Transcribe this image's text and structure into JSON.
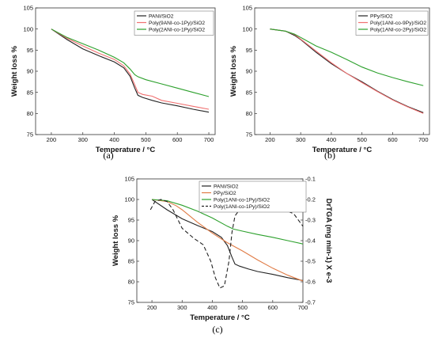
{
  "colors": {
    "black": "#222222",
    "red": "#f07070",
    "green": "#2ca02c",
    "orange": "#e07b45"
  },
  "chart_data": [
    {
      "type": "line",
      "panel": "a",
      "caption": "(a)",
      "xlabel": "Temperature / °C",
      "ylabel": "Weight loss %",
      "xlim": [
        150,
        720
      ],
      "ylim": [
        75,
        105
      ],
      "xticks": [
        200,
        300,
        400,
        500,
        600,
        700
      ],
      "yticks": [
        75,
        80,
        85,
        90,
        95,
        100,
        105
      ],
      "legend_position": "top-right",
      "series": [
        {
          "name": "PANI/SiO2",
          "color": "black",
          "x": [
            200,
            250,
            300,
            350,
            400,
            430,
            450,
            465,
            475,
            490,
            520,
            550,
            600,
            650,
            700
          ],
          "y": [
            100,
            97.5,
            95.3,
            93.7,
            92.2,
            90.8,
            88.8,
            86,
            84.3,
            83.8,
            83.1,
            82.5,
            81.8,
            81,
            80.3
          ]
        },
        {
          "name": "Poly(9ANI-co-1Py)/SiO2",
          "color": "red",
          "x": [
            200,
            250,
            300,
            350,
            400,
            430,
            450,
            465,
            475,
            490,
            520,
            550,
            600,
            650,
            700
          ],
          "y": [
            100,
            97.8,
            96,
            94.3,
            92.8,
            91.3,
            89.3,
            86.8,
            85,
            84.5,
            84.1,
            83.1,
            82.4,
            81.7,
            81
          ]
        },
        {
          "name": "Poly(2ANI-co-1Py)/SiO2",
          "color": "green",
          "x": [
            200,
            250,
            300,
            350,
            400,
            430,
            450,
            465,
            475,
            500,
            550,
            600,
            650,
            700
          ],
          "y": [
            100,
            98,
            96.5,
            95,
            93.3,
            92,
            90.5,
            89.2,
            88.7,
            88,
            87,
            86,
            85,
            84
          ]
        }
      ]
    },
    {
      "type": "line",
      "panel": "b",
      "caption": "(b)",
      "xlabel": "Temperature / °C",
      "ylabel": "Weight loss %",
      "xlim": [
        150,
        720
      ],
      "ylim": [
        75,
        105
      ],
      "xticks": [
        200,
        300,
        400,
        500,
        600,
        700
      ],
      "yticks": [
        75,
        80,
        85,
        90,
        95,
        100,
        105
      ],
      "legend_position": "top-right",
      "series": [
        {
          "name": "PPy/SiO2",
          "color": "black",
          "x": [
            200,
            250,
            280,
            300,
            350,
            400,
            450,
            500,
            550,
            600,
            650,
            700
          ],
          "y": [
            100,
            99.5,
            98.5,
            97.5,
            94.5,
            91.8,
            89.5,
            87.5,
            85.3,
            83.3,
            81.6,
            80.2
          ]
        },
        {
          "name": "Poly(1ANI-co-9Py)/SiO2",
          "color": "red",
          "x": [
            200,
            250,
            280,
            300,
            350,
            400,
            450,
            500,
            550,
            600,
            650,
            700
          ],
          "y": [
            100,
            99.5,
            98.7,
            97.6,
            94.8,
            92,
            89.5,
            87.3,
            85.2,
            83.2,
            81.5,
            80
          ]
        },
        {
          "name": "Poly(1ANI-co-2Py)/SiO2",
          "color": "green",
          "x": [
            200,
            250,
            280,
            300,
            350,
            400,
            450,
            500,
            550,
            600,
            650,
            700
          ],
          "y": [
            100,
            99.5,
            98.8,
            98,
            96,
            94.5,
            92.8,
            91,
            89.6,
            88.5,
            87.5,
            86.6
          ]
        }
      ]
    },
    {
      "type": "line",
      "panel": "c",
      "caption": "(c)",
      "xlabel": "Temperature / °C",
      "ylabel": "Weight loss %",
      "y2label": "DrTGA (mg min-1) X e-3",
      "xlim": [
        150,
        700
      ],
      "ylim": [
        75,
        105
      ],
      "y2lim": [
        -0.7,
        -0.1
      ],
      "xticks": [
        200,
        300,
        400,
        500,
        600,
        700
      ],
      "yticks": [
        75,
        80,
        85,
        90,
        95,
        100,
        105
      ],
      "y2ticks": [
        -0.7,
        -0.6,
        -0.5,
        -0.4,
        -0.3,
        -0.2,
        -0.1
      ],
      "legend_position": "top-right",
      "series": [
        {
          "name": "PANI/SiO2",
          "color": "black",
          "axis": "left",
          "x": [
            200,
            250,
            300,
            350,
            400,
            430,
            450,
            465,
            475,
            490,
            520,
            550,
            600,
            650,
            700
          ],
          "y": [
            100,
            97.5,
            95.3,
            93.7,
            92.2,
            90.8,
            88.8,
            86,
            84.3,
            83.8,
            83.1,
            82.5,
            81.8,
            81,
            80.3
          ]
        },
        {
          "name": "PPy/SiO2",
          "color": "orange",
          "axis": "left",
          "x": [
            200,
            250,
            280,
            300,
            350,
            400,
            450,
            500,
            550,
            600,
            650,
            700
          ],
          "y": [
            100,
            99.5,
            98.5,
            97.5,
            94.5,
            91.8,
            89.5,
            87.5,
            85.3,
            83.3,
            81.6,
            80.2
          ]
        },
        {
          "name": "Poly(1ANI-co-1Py)/SiO2",
          "color": "green",
          "axis": "left",
          "x": [
            200,
            250,
            300,
            350,
            400,
            450,
            470,
            500,
            550,
            600,
            650,
            700
          ],
          "y": [
            100,
            99.7,
            98.6,
            97.2,
            95.5,
            93.5,
            92.8,
            92.3,
            91.5,
            90.8,
            90,
            89.2
          ]
        },
        {
          "name": "Poly(1ANI-co-1Py)/SiO2",
          "color": "black",
          "axis": "right",
          "dash": true,
          "x": [
            195,
            210,
            230,
            250,
            270,
            300,
            340,
            370,
            395,
            410,
            425,
            440,
            455,
            465,
            475,
            490,
            520,
            560,
            600,
            640,
            670,
            700
          ],
          "y": [
            -0.25,
            -0.21,
            -0.2,
            -0.21,
            -0.25,
            -0.34,
            -0.39,
            -0.42,
            -0.5,
            -0.58,
            -0.63,
            -0.62,
            -0.5,
            -0.36,
            -0.28,
            -0.25,
            -0.25,
            -0.25,
            -0.24,
            -0.25,
            -0.27,
            -0.33
          ]
        }
      ]
    }
  ]
}
